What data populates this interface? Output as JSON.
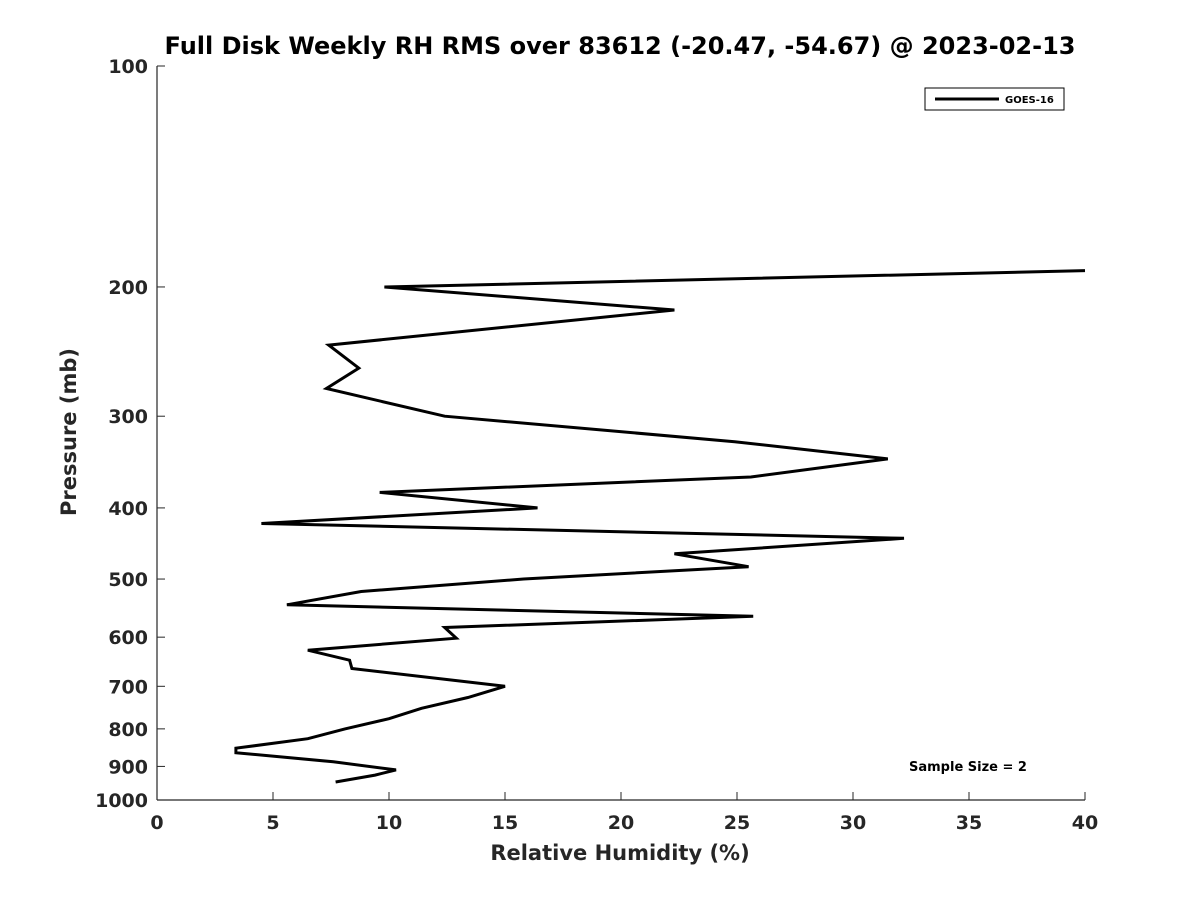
{
  "chart_data": {
    "type": "line",
    "title": "Full Disk Weekly RH RMS over 83612 (-20.47, -54.67) @ 2023-02-13",
    "xlabel": "Relative Humidity (%)",
    "ylabel": "Pressure (mb)",
    "xlim": [
      0,
      40
    ],
    "ylim": [
      100,
      1000
    ],
    "y_scale": "log",
    "y_reversed": true,
    "x_ticks": [
      0,
      5,
      10,
      15,
      20,
      25,
      30,
      35,
      40
    ],
    "y_ticks": [
      100,
      200,
      300,
      400,
      500,
      600,
      700,
      800,
      900,
      1000
    ],
    "grid": false,
    "legend_position": "top-right",
    "series": [
      {
        "name": "GOES-16",
        "color": "#000000",
        "points": [
          {
            "x": 40.0,
            "y": 190
          },
          {
            "x": 9.8,
            "y": 200
          },
          {
            "x": 22.3,
            "y": 215
          },
          {
            "x": 7.4,
            "y": 240
          },
          {
            "x": 8.7,
            "y": 258
          },
          {
            "x": 7.3,
            "y": 275
          },
          {
            "x": 12.4,
            "y": 300
          },
          {
            "x": 24.9,
            "y": 325
          },
          {
            "x": 31.5,
            "y": 343
          },
          {
            "x": 25.6,
            "y": 363
          },
          {
            "x": 9.6,
            "y": 381
          },
          {
            "x": 16.4,
            "y": 400
          },
          {
            "x": 4.5,
            "y": 420
          },
          {
            "x": 32.2,
            "y": 440
          },
          {
            "x": 22.3,
            "y": 462
          },
          {
            "x": 25.5,
            "y": 481
          },
          {
            "x": 15.8,
            "y": 500
          },
          {
            "x": 8.8,
            "y": 520
          },
          {
            "x": 5.6,
            "y": 542
          },
          {
            "x": 25.7,
            "y": 562
          },
          {
            "x": 12.4,
            "y": 582
          },
          {
            "x": 12.9,
            "y": 602
          },
          {
            "x": 6.5,
            "y": 625
          },
          {
            "x": 8.3,
            "y": 645
          },
          {
            "x": 8.4,
            "y": 662
          },
          {
            "x": 15.0,
            "y": 700
          },
          {
            "x": 13.4,
            "y": 725
          },
          {
            "x": 11.4,
            "y": 750
          },
          {
            "x": 10.0,
            "y": 775
          },
          {
            "x": 8.1,
            "y": 800
          },
          {
            "x": 6.5,
            "y": 825
          },
          {
            "x": 3.4,
            "y": 850
          },
          {
            "x": 3.4,
            "y": 862
          },
          {
            "x": 7.6,
            "y": 887
          },
          {
            "x": 10.3,
            "y": 910
          },
          {
            "x": 9.4,
            "y": 925
          },
          {
            "x": 7.7,
            "y": 945
          }
        ]
      }
    ],
    "legend": [
      {
        "label": "GOES-16"
      }
    ],
    "annotations": [
      {
        "text": "Sample Size = 2"
      }
    ]
  }
}
